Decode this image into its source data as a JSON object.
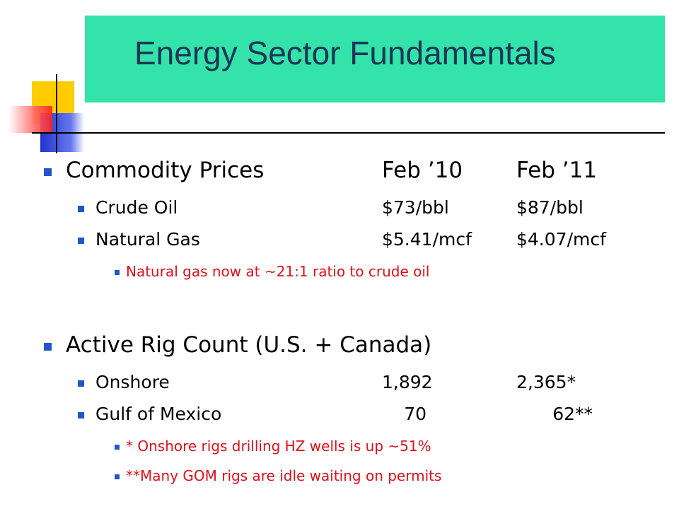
{
  "title": "Energy Sector Fundamentals",
  "sections": [
    {
      "heading": "Commodity Prices",
      "col1": "Feb ’10",
      "col2": "Feb ’11",
      "items": [
        {
          "label": "Crude Oil",
          "col1": "$73/bbl",
          "col2": "$87/bbl"
        },
        {
          "label": "Natural Gas",
          "col1": "$5.41/mcf",
          "col2": "$4.07/mcf"
        }
      ],
      "notes": [
        "Natural gas now at ~21:1 ratio to crude oil"
      ]
    },
    {
      "heading": "Active Rig Count (U.S. + Canada)",
      "items": [
        {
          "label": "Onshore",
          "col1": "1,892",
          "col2": "2,365*"
        },
        {
          "label": "Gulf of Mexico",
          "col1": "70",
          "col2": "62**"
        }
      ],
      "notes": [
        "* Onshore rigs drilling HZ wells is up ~51%",
        "**Many GOM rigs are idle waiting on permits"
      ]
    }
  ]
}
